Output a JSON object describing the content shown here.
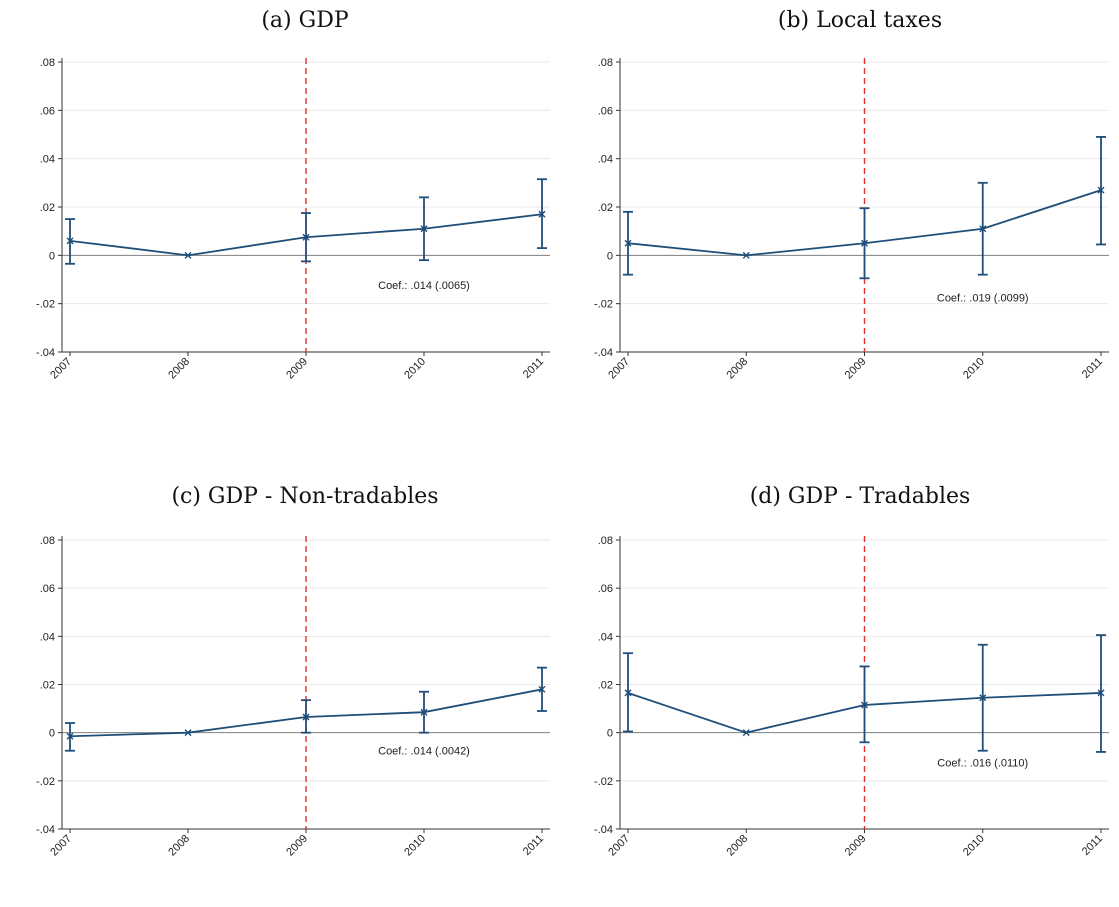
{
  "style": {
    "series_color": "#1f4e79",
    "zero_line_color": "#7f7f7f",
    "grid_color": "#eaeaea",
    "event_line_color": "#e03030"
  },
  "chart_data": [
    {
      "type": "line",
      "title": "(a) GDP",
      "x": [
        "2007",
        "2008",
        "2009",
        "2010",
        "2011"
      ],
      "values": [
        0.006,
        0.0,
        0.0075,
        0.011,
        0.017
      ],
      "ci_low": [
        -0.0035,
        0.0,
        -0.0025,
        -0.002,
        0.003
      ],
      "ci_high": [
        0.015,
        0.0,
        0.0175,
        0.024,
        0.0315
      ],
      "ylim": [
        -0.04,
        0.08
      ],
      "yticks": [
        ".08",
        ".06",
        ".04",
        ".02",
        "0",
        "-.02",
        "-.04"
      ],
      "ytick_values": [
        0.08,
        0.06,
        0.04,
        0.02,
        0,
        -0.02,
        -0.04
      ],
      "event_x": "2009",
      "annotation": "Coef.: .014 (.0065)",
      "annotation_pos": {
        "x": 3.0,
        "y": -0.014
      },
      "grid": true
    },
    {
      "type": "line",
      "title": "(b) Local taxes",
      "x": [
        "2007",
        "2008",
        "2009",
        "2010",
        "2011"
      ],
      "values": [
        0.005,
        0.0,
        0.005,
        0.011,
        0.027
      ],
      "ci_low": [
        -0.008,
        0.0,
        -0.0095,
        -0.008,
        0.0045
      ],
      "ci_high": [
        0.018,
        0.0,
        0.0195,
        0.03,
        0.049
      ],
      "ylim": [
        -0.04,
        0.08
      ],
      "yticks": [
        ".08",
        ".06",
        ".04",
        ".02",
        "0",
        "-.02",
        "-.04"
      ],
      "ytick_values": [
        0.08,
        0.06,
        0.04,
        0.02,
        0,
        -0.02,
        -0.04
      ],
      "event_x": "2009",
      "annotation": "Coef.: .019 (.0099)",
      "annotation_pos": {
        "x": 3.0,
        "y": -0.019
      },
      "grid": true
    },
    {
      "type": "line",
      "title": "(c) GDP - Non-tradables",
      "x": [
        "2007",
        "2008",
        "2009",
        "2010",
        "2011"
      ],
      "values": [
        -0.0015,
        0.0,
        0.0065,
        0.0085,
        0.018
      ],
      "ci_low": [
        -0.0075,
        0.0,
        0.0,
        0.0,
        0.009
      ],
      "ci_high": [
        0.004,
        0.0,
        0.0135,
        0.017,
        0.027
      ],
      "ylim": [
        -0.04,
        0.08
      ],
      "yticks": [
        ".08",
        ".06",
        ".04",
        ".02",
        "0",
        "-.02",
        "-.04"
      ],
      "ytick_values": [
        0.08,
        0.06,
        0.04,
        0.02,
        0,
        -0.02,
        -0.04
      ],
      "event_x": "2009",
      "annotation": "Coef.: .014 (.0042)",
      "annotation_pos": {
        "x": 3.0,
        "y": -0.009
      },
      "grid": true
    },
    {
      "type": "line",
      "title": "(d) GDP - Tradables",
      "x": [
        "2007",
        "2008",
        "2009",
        "2010",
        "2011"
      ],
      "values": [
        0.0165,
        0.0,
        0.0115,
        0.0145,
        0.0165
      ],
      "ci_low": [
        0.0005,
        0.0,
        -0.004,
        -0.0075,
        -0.008
      ],
      "ci_high": [
        0.033,
        0.0,
        0.0275,
        0.0365,
        0.0405
      ],
      "ylim": [
        -0.04,
        0.08
      ],
      "yticks": [
        ".08",
        ".06",
        ".04",
        ".02",
        "0",
        "-.02",
        "-.04"
      ],
      "ytick_values": [
        0.08,
        0.06,
        0.04,
        0.02,
        0,
        -0.02,
        -0.04
      ],
      "event_x": "2009",
      "annotation": "Coef.: .016 (.0110)",
      "annotation_pos": {
        "x": 3.0,
        "y": -0.014
      },
      "grid": true
    }
  ]
}
